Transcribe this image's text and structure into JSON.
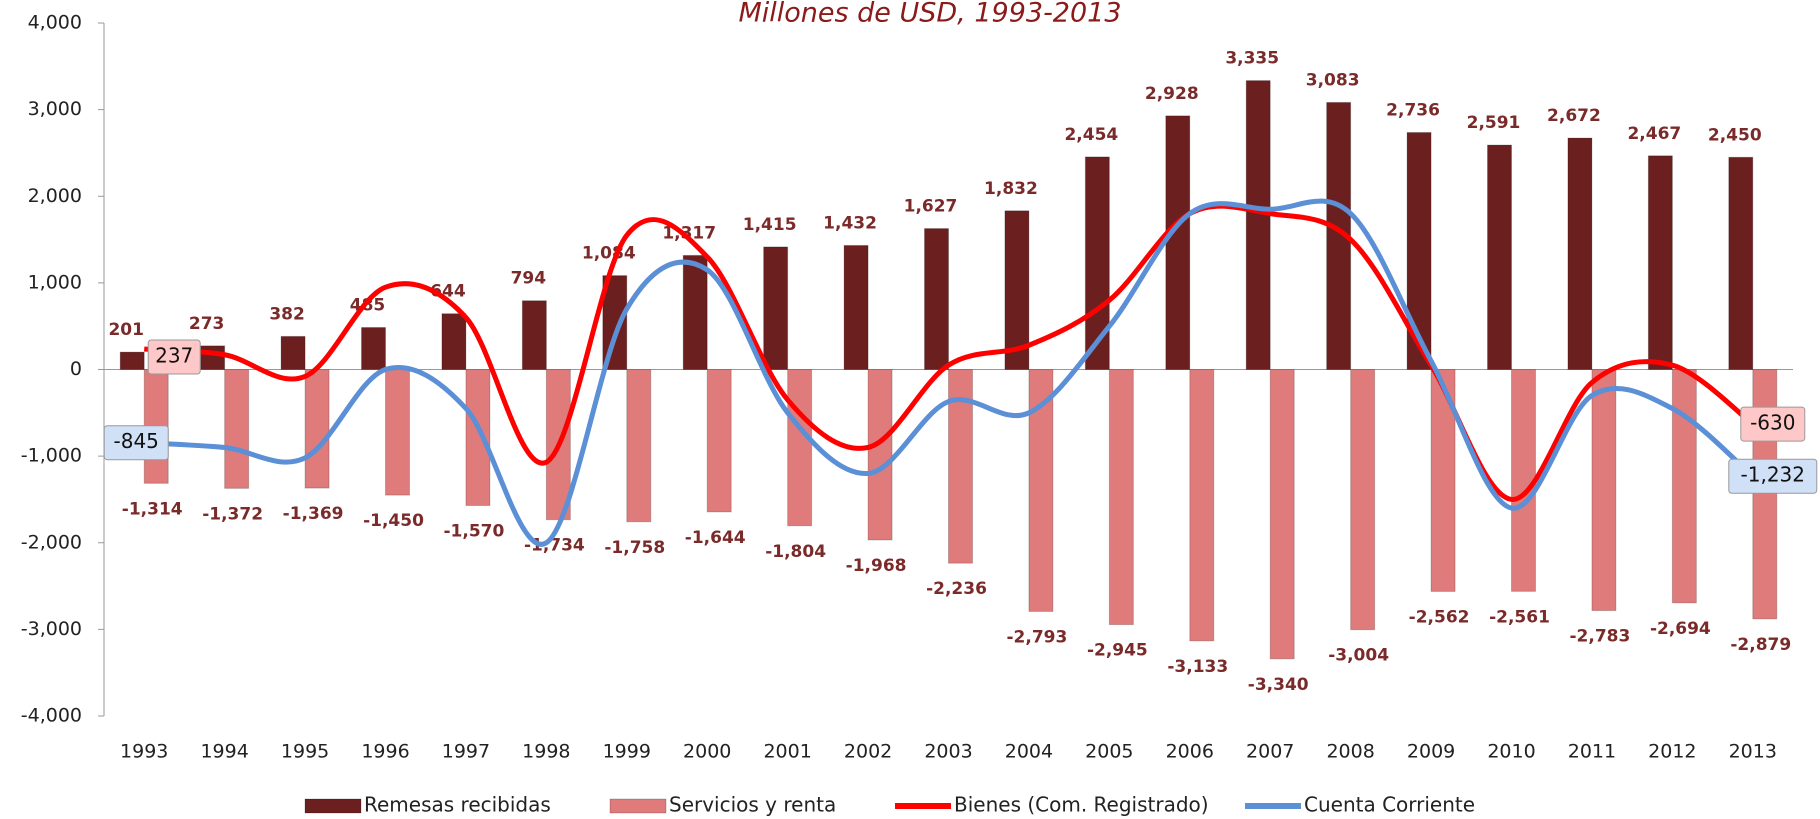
{
  "chart_data": {
    "type": "bar-line",
    "subtitle": "Millones de USD, 1993-2013",
    "categories": [
      "1993",
      "1994",
      "1995",
      "1996",
      "1997",
      "1998",
      "1999",
      "2000",
      "2001",
      "2002",
      "2003",
      "2004",
      "2005",
      "2006",
      "2007",
      "2008",
      "2009",
      "2010",
      "2011",
      "2012",
      "2013"
    ],
    "ylim": [
      -4000,
      4000
    ],
    "yticks": [
      {
        "value": -4000,
        "label": "-4,000"
      },
      {
        "value": -3000,
        "label": "-3,000"
      },
      {
        "value": -2000,
        "label": "-2,000"
      },
      {
        "value": -1000,
        "label": "-1,000"
      },
      0,
      {
        "value": 1000,
        "label": "1,000"
      },
      {
        "value": 2000,
        "label": "2,000"
      },
      {
        "value": 3000,
        "label": "3,000"
      },
      {
        "value": 4000,
        "label": "4,000"
      }
    ],
    "series": [
      {
        "name": "Remesas recibidas",
        "kind": "bar",
        "color": "#6b1f1f",
        "values": [
          201,
          273,
          382,
          485,
          644,
          794,
          1084,
          1317,
          1415,
          1432,
          1627,
          1832,
          2454,
          2928,
          3335,
          3083,
          2736,
          2591,
          2672,
          2467,
          2450
        ],
        "value_labels": [
          "201",
          "273",
          "382",
          "485",
          "644",
          "794",
          "1,084",
          "1,317",
          "1,415",
          "1,432",
          "1,627",
          "1,832",
          "2,454",
          "2,928",
          "3,335",
          "3,083",
          "2,736",
          "2,591",
          "2,672",
          "2,467",
          "2,450"
        ]
      },
      {
        "name": "Servicios y renta",
        "kind": "bar",
        "color": "#e07b7b",
        "values": [
          -1314,
          -1372,
          -1369,
          -1450,
          -1570,
          -1734,
          -1758,
          -1644,
          -1804,
          -1968,
          -2236,
          -2793,
          -2945,
          -3133,
          -3340,
          -3004,
          -2562,
          -2561,
          -2783,
          -2694,
          -2879
        ],
        "value_labels": [
          "-1,314",
          "-1,372",
          "-1,369",
          "-1,450",
          "-1,570",
          "-1,734",
          "-1,758",
          "-1,644",
          "-1,804",
          "-1,968",
          "-2,236",
          "-2,793",
          "-2,945",
          "-3,133",
          "-3,340",
          "-3,004",
          "-2,562",
          "-2,561",
          "-2,783",
          "-2,694",
          "-2,879"
        ]
      },
      {
        "name": "Bienes (Com. Registrado)",
        "kind": "line",
        "color": "#ff0000",
        "label_color": "#ffc8c8",
        "values": [
          237,
          170,
          -80,
          950,
          600,
          -1070,
          1550,
          1300,
          -350,
          -900,
          50,
          280,
          800,
          1800,
          1800,
          1500,
          50,
          -1500,
          -150,
          50,
          -630
        ],
        "value_labels": [
          "237",
          null,
          null,
          null,
          null,
          null,
          null,
          null,
          null,
          null,
          null,
          null,
          null,
          null,
          null,
          null,
          null,
          null,
          null,
          null,
          "-630"
        ]
      },
      {
        "name": "Cuenta Corriente",
        "kind": "line",
        "color": "#5b8fd6",
        "label_color": "#cfe0f7",
        "values": [
          -845,
          -900,
          -1020,
          0,
          -450,
          -2000,
          700,
          1150,
          -500,
          -1200,
          -370,
          -500,
          500,
          1800,
          1850,
          1800,
          100,
          -1600,
          -300,
          -450,
          -1232
        ],
        "value_labels": [
          "-845",
          null,
          null,
          null,
          null,
          null,
          null,
          null,
          null,
          null,
          null,
          null,
          null,
          null,
          null,
          null,
          null,
          null,
          null,
          null,
          "-1,232"
        ]
      }
    ]
  }
}
